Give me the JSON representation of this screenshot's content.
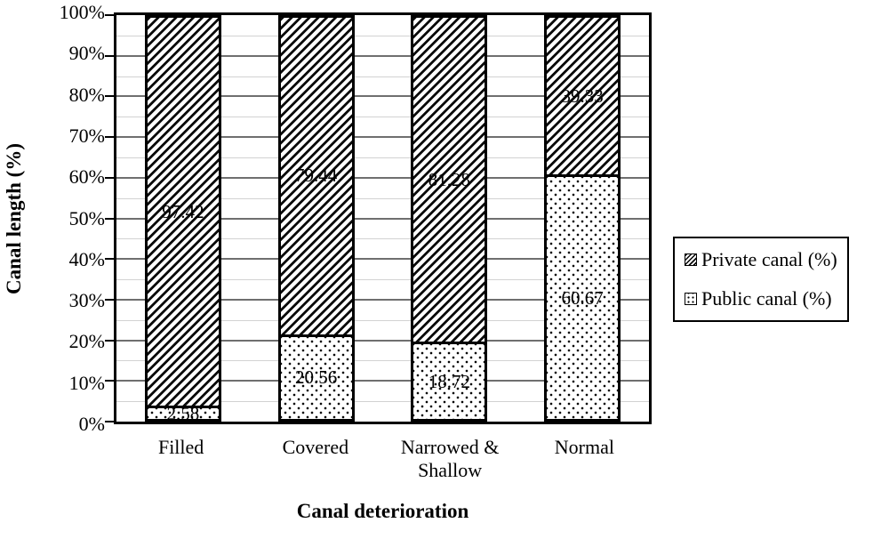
{
  "figure": {
    "y_axis_title": "Canal length (%)",
    "x_axis_title": "Canal deterioration"
  },
  "legend": {
    "items": [
      {
        "label": "Private canal (%)",
        "pattern": "diagonal-hatch"
      },
      {
        "label": "Public canal (%)",
        "pattern": "dots"
      }
    ]
  },
  "colors": {
    "foreground": "#000000",
    "background": "#ffffff",
    "grid_major": "#6f6f6f",
    "grid_minor": "#d2d2d2"
  },
  "chart_data": {
    "type": "bar",
    "subtype": "stacked-100-percent",
    "title": "",
    "xlabel": "Canal deterioration",
    "ylabel": "Canal length (%)",
    "categories": [
      "Filled",
      "Covered",
      "Narrowed & Shallow",
      "Normal"
    ],
    "series": [
      {
        "name": "Private canal (%)",
        "pattern": "diagonal-hatch",
        "stack_position": "top",
        "values": [
          97.42,
          79.44,
          81.28,
          39.33
        ],
        "labels": [
          "97.42",
          "79.44",
          "81.28",
          "39.33"
        ]
      },
      {
        "name": "Public canal (%)",
        "pattern": "dots",
        "stack_position": "bottom",
        "values": [
          2.58,
          20.56,
          18.72,
          60.67
        ],
        "labels": [
          "2.58",
          "20.56",
          "18.72",
          "60.67"
        ]
      }
    ],
    "ylim": [
      0,
      100
    ],
    "y_tick_step": 10,
    "y_ticks": [
      "0%",
      "10%",
      "20%",
      "30%",
      "40%",
      "50%",
      "60%",
      "70%",
      "80%",
      "90%",
      "100%"
    ],
    "grid": {
      "major_step": 10,
      "minor_step": 5,
      "visible": true
    },
    "legend_position": "right",
    "data_labels_visible": true
  }
}
